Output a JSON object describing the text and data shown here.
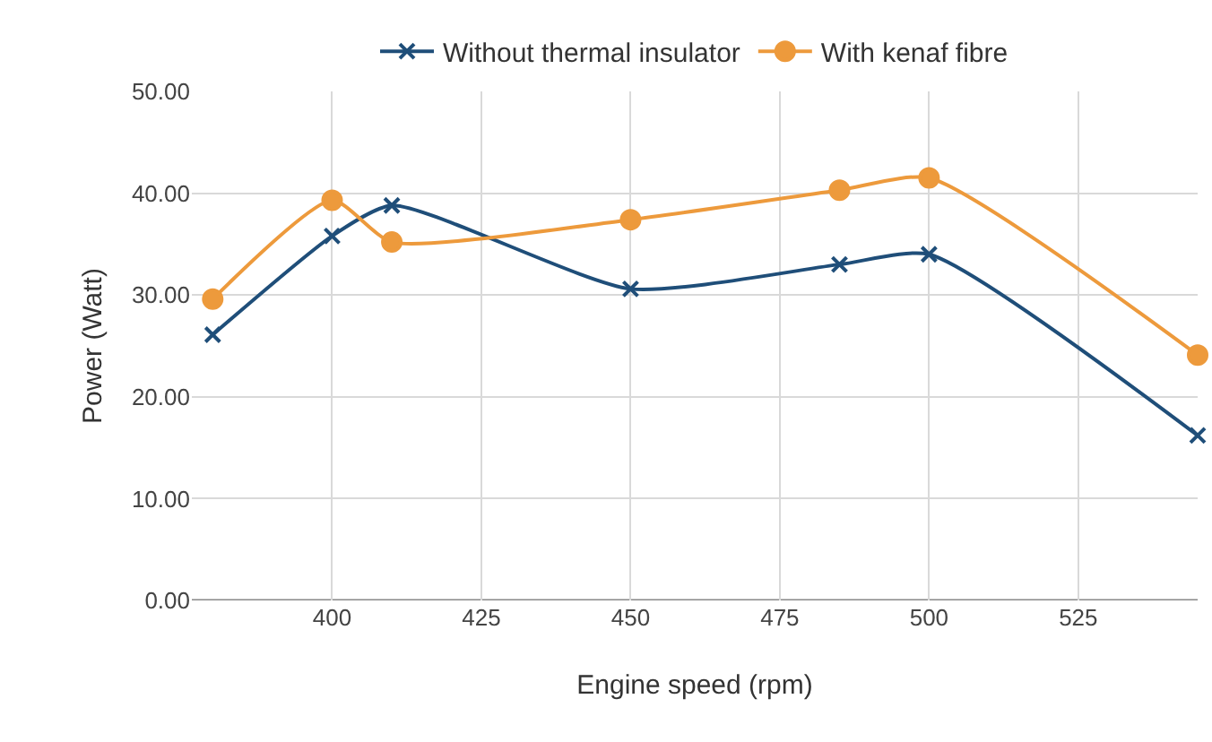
{
  "chart_data": {
    "type": "line",
    "xlabel": "Engine speed (rpm)",
    "ylabel": "Power (Watt)",
    "x": [
      380,
      400,
      410,
      450,
      485,
      500,
      545
    ],
    "series": [
      {
        "name": "Without thermal insulator",
        "color": "#1f4e79",
        "marker": "cross",
        "values": [
          26.1,
          35.8,
          38.8,
          30.6,
          33.0,
          34.0,
          16.2
        ]
      },
      {
        "name": "With kenaf fibre",
        "color": "#ed9a3c",
        "marker": "circle",
        "values": [
          29.6,
          39.3,
          35.2,
          37.4,
          40.3,
          41.5,
          24.1
        ]
      }
    ],
    "xlim": [
      376.5,
      545
    ],
    "xticks": [
      400,
      425,
      450,
      475,
      500,
      525
    ],
    "ylim": [
      0,
      50
    ],
    "yticks": [
      {
        "value": 0,
        "label": "0.00"
      },
      {
        "value": 10,
        "label": "10.00"
      },
      {
        "value": 20,
        "label": "20.00"
      },
      {
        "value": 30,
        "label": "30.00"
      },
      {
        "value": 40,
        "label": "40.00"
      },
      {
        "value": 50,
        "label": "50.00"
      }
    ],
    "grid": true,
    "legend": "top",
    "line_style": "solid"
  }
}
